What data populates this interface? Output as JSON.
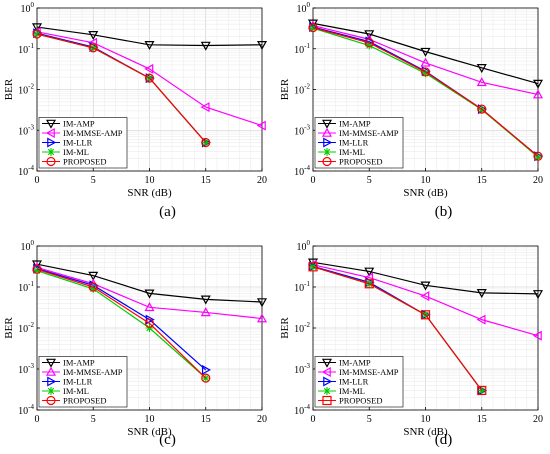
{
  "chart_data": [
    {
      "type": "line",
      "panel_label": "(a)",
      "xlabel": "SNR (dB)",
      "ylabel": "BER",
      "xlim": [
        0,
        20
      ],
      "ylim": [
        0.0001,
        1
      ],
      "yscale": "log",
      "xticks": [
        "0",
        "5",
        "10",
        "15",
        "20"
      ],
      "yticks": [
        "10^0",
        "10^-1",
        "10^-2",
        "10^-3",
        "10^-4"
      ],
      "grid": true,
      "legend_position": "bottom-left",
      "series": [
        {
          "name": "IM-AMP",
          "color": "#000000",
          "marker": "triangle-down",
          "x": [
            0,
            5,
            10,
            15,
            20
          ],
          "y": [
            0.34,
            0.22,
            0.125,
            0.12,
            0.125
          ]
        },
        {
          "name": "IM-MMSE-AMP",
          "color": "#ff00ff",
          "marker": "triangle-left",
          "x": [
            0,
            5,
            10,
            15,
            20
          ],
          "y": [
            0.26,
            0.14,
            0.032,
            0.0037,
            0.0013
          ]
        },
        {
          "name": "IM-LLR",
          "color": "#0000ff",
          "marker": "triangle-right",
          "x": [
            0,
            5,
            10,
            15
          ],
          "y": [
            0.24,
            0.11,
            0.019,
            0.0005
          ]
        },
        {
          "name": "IM-ML",
          "color": "#00cc00",
          "marker": "star",
          "x": [
            0,
            5,
            10,
            15
          ],
          "y": [
            0.23,
            0.105,
            0.019,
            0.0005
          ]
        },
        {
          "name": "PROPOSED",
          "color": "#ff0000",
          "marker": "circle",
          "x": [
            0,
            5,
            10,
            15
          ],
          "y": [
            0.23,
            0.105,
            0.019,
            0.0005
          ]
        }
      ]
    },
    {
      "type": "line",
      "panel_label": "(b)",
      "xlabel": "SNR (dB)",
      "ylabel": "BER",
      "xlim": [
        0,
        20
      ],
      "ylim": [
        0.0001,
        1
      ],
      "yscale": "log",
      "xticks": [
        "0",
        "5",
        "10",
        "15",
        "20"
      ],
      "yticks": [
        "10^0",
        "10^-1",
        "10^-2",
        "10^-3",
        "10^-4"
      ],
      "grid": true,
      "legend_position": "bottom-left",
      "series": [
        {
          "name": "IM-AMP",
          "color": "#000000",
          "marker": "triangle-down",
          "x": [
            0,
            5,
            10,
            15,
            20
          ],
          "y": [
            0.42,
            0.23,
            0.085,
            0.034,
            0.014
          ]
        },
        {
          "name": "IM-MMSE-AMP",
          "color": "#ff00ff",
          "marker": "triangle-up",
          "x": [
            0,
            5,
            10,
            15,
            20
          ],
          "y": [
            0.37,
            0.17,
            0.045,
            0.015,
            0.0075
          ]
        },
        {
          "name": "IM-LLR",
          "color": "#0000ff",
          "marker": "triangle-right",
          "x": [
            0,
            5,
            10,
            15,
            20
          ],
          "y": [
            0.34,
            0.15,
            0.028,
            0.0033,
            0.00023
          ]
        },
        {
          "name": "IM-ML",
          "color": "#00cc00",
          "marker": "star",
          "x": [
            0,
            5,
            10,
            15,
            20
          ],
          "y": [
            0.32,
            0.12,
            0.025,
            0.0032,
            0.00022
          ]
        },
        {
          "name": "PROPOSED",
          "color": "#ff0000",
          "marker": "circle",
          "x": [
            0,
            5,
            10,
            15,
            20
          ],
          "y": [
            0.33,
            0.14,
            0.027,
            0.0033,
            0.00023
          ]
        }
      ]
    },
    {
      "type": "line",
      "panel_label": "(c)",
      "xlabel": "SNR (dB)",
      "ylabel": "BER",
      "xlim": [
        0,
        20
      ],
      "ylim": [
        0.0001,
        1
      ],
      "yscale": "log",
      "xticks": [
        "0",
        "5",
        "10",
        "15",
        "20"
      ],
      "yticks": [
        "10^0",
        "10^-1",
        "10^-2",
        "10^-3",
        "10^-4"
      ],
      "grid": true,
      "legend_position": "bottom-left",
      "series": [
        {
          "name": "IM-AMP",
          "color": "#000000",
          "marker": "triangle-down",
          "x": [
            0,
            5,
            10,
            15,
            20
          ],
          "y": [
            0.36,
            0.19,
            0.07,
            0.05,
            0.043
          ]
        },
        {
          "name": "IM-MMSE-AMP",
          "color": "#ff00ff",
          "marker": "triangle-up",
          "x": [
            0,
            5,
            10,
            15,
            20
          ],
          "y": [
            0.3,
            0.12,
            0.032,
            0.024,
            0.017
          ]
        },
        {
          "name": "IM-LLR",
          "color": "#0000ff",
          "marker": "triangle-right",
          "x": [
            0,
            5,
            10,
            15
          ],
          "y": [
            0.28,
            0.11,
            0.016,
            0.00095
          ]
        },
        {
          "name": "IM-ML",
          "color": "#00cc00",
          "marker": "star",
          "x": [
            0,
            5,
            10,
            15
          ],
          "y": [
            0.25,
            0.09,
            0.01,
            0.0006
          ]
        },
        {
          "name": "PROPOSED",
          "color": "#ff0000",
          "marker": "circle",
          "x": [
            0,
            5,
            10,
            15
          ],
          "y": [
            0.27,
            0.1,
            0.013,
            0.0006
          ]
        }
      ]
    },
    {
      "type": "line",
      "panel_label": "(d)",
      "xlabel": "SNR (dB)",
      "ylabel": "BER",
      "xlim": [
        0,
        20
      ],
      "ylim": [
        0.0001,
        1
      ],
      "yscale": "log",
      "xticks": [
        "0",
        "5",
        "10",
        "15",
        "20"
      ],
      "yticks": [
        "10^0",
        "10^-1",
        "10^-2",
        "10^-3",
        "10^-4"
      ],
      "grid": true,
      "legend_position": "bottom-left",
      "series": [
        {
          "name": "IM-AMP",
          "color": "#000000",
          "marker": "triangle-down",
          "x": [
            0,
            5,
            10,
            15,
            20
          ],
          "y": [
            0.4,
            0.24,
            0.11,
            0.072,
            0.068
          ]
        },
        {
          "name": "IM-MMSE-AMP",
          "color": "#ff00ff",
          "marker": "triangle-left",
          "x": [
            0,
            5,
            10,
            15,
            20
          ],
          "y": [
            0.35,
            0.17,
            0.06,
            0.016,
            0.0065
          ]
        },
        {
          "name": "IM-LLR",
          "color": "#0000ff",
          "marker": "triangle-right",
          "x": [
            0,
            5,
            10,
            15
          ],
          "y": [
            0.32,
            0.13,
            0.021,
            0.0003
          ]
        },
        {
          "name": "IM-ML",
          "color": "#00cc00",
          "marker": "star",
          "x": [
            0,
            5,
            10,
            15
          ],
          "y": [
            0.31,
            0.12,
            0.021,
            0.0003
          ]
        },
        {
          "name": "PROPOSED",
          "color": "#ff0000",
          "marker": "square",
          "x": [
            0,
            5,
            10,
            15
          ],
          "y": [
            0.31,
            0.12,
            0.021,
            0.0003
          ]
        }
      ]
    }
  ]
}
